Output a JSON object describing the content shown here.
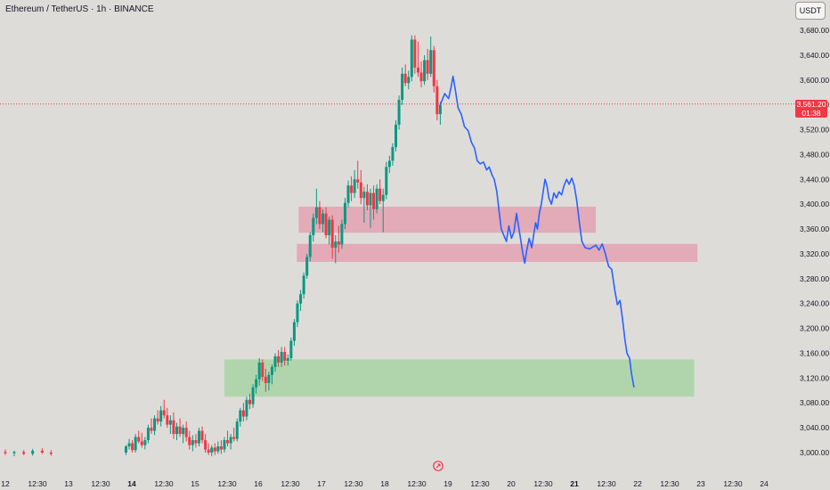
{
  "header": {
    "symbol_title": "Ethereum / TetherUS · 1h · BINANCE",
    "currency_button": "USDT"
  },
  "price_flag": {
    "price": "3,561.20",
    "countdown": "01:38"
  },
  "colors": {
    "background": "#dedcd9",
    "bull_candle": "#089981",
    "bear_candle": "#f23645",
    "projection_line": "#2962ff",
    "supply_zone": "#e4a1b2",
    "demand_zone": "#a8d3a4",
    "current_price_line": "#f23645"
  },
  "chart_data": {
    "type": "candlestick",
    "y_axis": {
      "ticks": [
        "3,680.00",
        "3,640.00",
        "3,600.00",
        "3,560.00",
        "3,520.00",
        "3,480.00",
        "3,440.00",
        "3,400.00",
        "3,360.00",
        "3,320.00",
        "3,280.00",
        "3,240.00",
        "3,200.00",
        "3,160.00",
        "3,120.00",
        "3,080.00",
        "3,040.00",
        "3,000.00"
      ],
      "ylim": [
        2980,
        3700
      ]
    },
    "x_axis": {
      "ticks": [
        {
          "label": "12",
          "bold": false
        },
        {
          "label": "12:30",
          "bold": false
        },
        {
          "label": "13",
          "bold": false
        },
        {
          "label": "12:30",
          "bold": false
        },
        {
          "label": "14",
          "bold": true
        },
        {
          "label": "12:30",
          "bold": false
        },
        {
          "label": "15",
          "bold": false
        },
        {
          "label": "12:30",
          "bold": false
        },
        {
          "label": "16",
          "bold": false
        },
        {
          "label": "12:30",
          "bold": false
        },
        {
          "label": "17",
          "bold": false
        },
        {
          "label": "12:30",
          "bold": false
        },
        {
          "label": "18",
          "bold": false
        },
        {
          "label": "12:30",
          "bold": false
        },
        {
          "label": "19",
          "bold": false
        },
        {
          "label": "12:30",
          "bold": false
        },
        {
          "label": "20",
          "bold": false
        },
        {
          "label": "12:30",
          "bold": false
        },
        {
          "label": "21",
          "bold": true
        },
        {
          "label": "12:30",
          "bold": false
        },
        {
          "label": "22",
          "bold": false
        },
        {
          "label": "12:30",
          "bold": false
        },
        {
          "label": "23",
          "bold": false
        },
        {
          "label": "12:30",
          "bold": false
        },
        {
          "label": "24",
          "bold": false
        }
      ]
    },
    "current_price": 3561.2,
    "zones": [
      {
        "kind": "supply",
        "x_from": 16.62,
        "x_to": 21.3,
        "y_low": 3354,
        "y_high": 3396
      },
      {
        "kind": "supply",
        "x_from": 16.59,
        "x_to": 22.9,
        "y_low": 3307,
        "y_high": 3336
      },
      {
        "kind": "demand",
        "x_from": 15.45,
        "x_to": 22.85,
        "y_low": 3090,
        "y_high": 3150
      }
    ],
    "candles": [
      {
        "t": 12.0,
        "o": 3001,
        "h": 3005,
        "l": 2996,
        "c": 2999
      },
      {
        "t": 12.14,
        "o": 2999,
        "h": 3003,
        "l": 2994,
        "c": 3001
      },
      {
        "t": 12.29,
        "o": 3001,
        "h": 3004,
        "l": 2996,
        "c": 2998
      },
      {
        "t": 12.43,
        "o": 2998,
        "h": 3006,
        "l": 2995,
        "c": 3003
      },
      {
        "t": 12.58,
        "o": 3003,
        "h": 3007,
        "l": 2998,
        "c": 3000
      },
      {
        "t": 12.72,
        "o": 3000,
        "h": 3004,
        "l": 2995,
        "c": 2998
      },
      {
        "t": 13.9,
        "o": 3000,
        "h": 3012,
        "l": 2996,
        "c": 3010
      },
      {
        "t": 13.95,
        "o": 3010,
        "h": 3022,
        "l": 3005,
        "c": 3015
      },
      {
        "t": 14.0,
        "o": 3015,
        "h": 3020,
        "l": 3000,
        "c": 3004
      },
      {
        "t": 14.05,
        "o": 3004,
        "h": 3030,
        "l": 3000,
        "c": 3025
      },
      {
        "t": 14.1,
        "o": 3025,
        "h": 3035,
        "l": 3015,
        "c": 3018
      },
      {
        "t": 14.15,
        "o": 3018,
        "h": 3032,
        "l": 3008,
        "c": 3012
      },
      {
        "t": 14.2,
        "o": 3012,
        "h": 3025,
        "l": 3005,
        "c": 3020
      },
      {
        "t": 14.25,
        "o": 3020,
        "h": 3045,
        "l": 3015,
        "c": 3040
      },
      {
        "t": 14.3,
        "o": 3040,
        "h": 3055,
        "l": 3030,
        "c": 3035
      },
      {
        "t": 14.35,
        "o": 3035,
        "h": 3060,
        "l": 3028,
        "c": 3055
      },
      {
        "t": 14.4,
        "o": 3055,
        "h": 3068,
        "l": 3045,
        "c": 3050
      },
      {
        "t": 14.45,
        "o": 3050,
        "h": 3075,
        "l": 3042,
        "c": 3068
      },
      {
        "t": 14.5,
        "o": 3068,
        "h": 3085,
        "l": 3055,
        "c": 3060
      },
      {
        "t": 14.55,
        "o": 3060,
        "h": 3072,
        "l": 3040,
        "c": 3045
      },
      {
        "t": 14.6,
        "o": 3045,
        "h": 3060,
        "l": 3030,
        "c": 3052
      },
      {
        "t": 14.65,
        "o": 3052,
        "h": 3065,
        "l": 3022,
        "c": 3030
      },
      {
        "t": 14.7,
        "o": 3030,
        "h": 3048,
        "l": 3020,
        "c": 3042
      },
      {
        "t": 14.75,
        "o": 3042,
        "h": 3055,
        "l": 3025,
        "c": 3030
      },
      {
        "t": 14.8,
        "o": 3030,
        "h": 3045,
        "l": 3015,
        "c": 3040
      },
      {
        "t": 14.85,
        "o": 3040,
        "h": 3050,
        "l": 3018,
        "c": 3025
      },
      {
        "t": 14.9,
        "o": 3025,
        "h": 3035,
        "l": 3005,
        "c": 3012
      },
      {
        "t": 14.95,
        "o": 3012,
        "h": 3028,
        "l": 3002,
        "c": 3020
      },
      {
        "t": 15.0,
        "o": 3020,
        "h": 3030,
        "l": 3008,
        "c": 3015
      },
      {
        "t": 15.05,
        "o": 3015,
        "h": 3040,
        "l": 3010,
        "c": 3035
      },
      {
        "t": 15.1,
        "o": 3035,
        "h": 3042,
        "l": 3015,
        "c": 3020
      },
      {
        "t": 15.15,
        "o": 3020,
        "h": 3030,
        "l": 3000,
        "c": 3005
      },
      {
        "t": 15.2,
        "o": 3005,
        "h": 3015,
        "l": 2996,
        "c": 3000
      },
      {
        "t": 15.25,
        "o": 3000,
        "h": 3012,
        "l": 2994,
        "c": 3008
      },
      {
        "t": 15.3,
        "o": 3008,
        "h": 3015,
        "l": 2996,
        "c": 3002
      },
      {
        "t": 15.35,
        "o": 3002,
        "h": 3018,
        "l": 2998,
        "c": 3010
      },
      {
        "t": 15.4,
        "o": 3010,
        "h": 3020,
        "l": 2998,
        "c": 3005
      },
      {
        "t": 15.45,
        "o": 3005,
        "h": 3025,
        "l": 3000,
        "c": 3020
      },
      {
        "t": 15.5,
        "o": 3020,
        "h": 3035,
        "l": 3010,
        "c": 3015
      },
      {
        "t": 15.55,
        "o": 3015,
        "h": 3030,
        "l": 3005,
        "c": 3025
      },
      {
        "t": 15.6,
        "o": 3025,
        "h": 3040,
        "l": 3018,
        "c": 3022
      },
      {
        "t": 15.65,
        "o": 3022,
        "h": 3055,
        "l": 3018,
        "c": 3050
      },
      {
        "t": 15.7,
        "o": 3050,
        "h": 3072,
        "l": 3042,
        "c": 3068
      },
      {
        "t": 15.75,
        "o": 3068,
        "h": 3080,
        "l": 3050,
        "c": 3058
      },
      {
        "t": 15.8,
        "o": 3058,
        "h": 3090,
        "l": 3052,
        "c": 3085
      },
      {
        "t": 15.85,
        "o": 3085,
        "h": 3095,
        "l": 3070,
        "c": 3078
      },
      {
        "t": 15.9,
        "o": 3078,
        "h": 3110,
        "l": 3072,
        "c": 3105
      },
      {
        "t": 15.95,
        "o": 3105,
        "h": 3125,
        "l": 3095,
        "c": 3118
      },
      {
        "t": 16.0,
        "o": 3118,
        "h": 3152,
        "l": 3108,
        "c": 3145
      },
      {
        "t": 16.05,
        "o": 3145,
        "h": 3150,
        "l": 3115,
        "c": 3122
      },
      {
        "t": 16.1,
        "o": 3122,
        "h": 3135,
        "l": 3098,
        "c": 3112
      },
      {
        "t": 16.15,
        "o": 3112,
        "h": 3130,
        "l": 3100,
        "c": 3125
      },
      {
        "t": 16.2,
        "o": 3125,
        "h": 3142,
        "l": 3110,
        "c": 3138
      },
      {
        "t": 16.25,
        "o": 3138,
        "h": 3160,
        "l": 3130,
        "c": 3155
      },
      {
        "t": 16.3,
        "o": 3155,
        "h": 3165,
        "l": 3138,
        "c": 3145
      },
      {
        "t": 16.35,
        "o": 3145,
        "h": 3170,
        "l": 3138,
        "c": 3162
      },
      {
        "t": 16.4,
        "o": 3162,
        "h": 3170,
        "l": 3140,
        "c": 3148
      },
      {
        "t": 16.45,
        "o": 3148,
        "h": 3158,
        "l": 3140,
        "c": 3152
      },
      {
        "t": 16.5,
        "o": 3152,
        "h": 3185,
        "l": 3148,
        "c": 3180
      },
      {
        "t": 16.55,
        "o": 3180,
        "h": 3215,
        "l": 3172,
        "c": 3210
      },
      {
        "t": 16.6,
        "o": 3210,
        "h": 3245,
        "l": 3202,
        "c": 3240
      },
      {
        "t": 16.65,
        "o": 3240,
        "h": 3262,
        "l": 3228,
        "c": 3255
      },
      {
        "t": 16.7,
        "o": 3255,
        "h": 3290,
        "l": 3248,
        "c": 3285
      },
      {
        "t": 16.75,
        "o": 3285,
        "h": 3320,
        "l": 3280,
        "c": 3315
      },
      {
        "t": 16.8,
        "o": 3315,
        "h": 3355,
        "l": 3308,
        "c": 3350
      },
      {
        "t": 16.85,
        "o": 3350,
        "h": 3385,
        "l": 3340,
        "c": 3378
      },
      {
        "t": 16.9,
        "o": 3378,
        "h": 3425,
        "l": 3368,
        "c": 3395
      },
      {
        "t": 16.95,
        "o": 3395,
        "h": 3405,
        "l": 3360,
        "c": 3368
      },
      {
        "t": 17.0,
        "o": 3368,
        "h": 3392,
        "l": 3355,
        "c": 3385
      },
      {
        "t": 17.05,
        "o": 3385,
        "h": 3395,
        "l": 3345,
        "c": 3350
      },
      {
        "t": 17.1,
        "o": 3350,
        "h": 3380,
        "l": 3335,
        "c": 3375
      },
      {
        "t": 17.15,
        "o": 3375,
        "h": 3382,
        "l": 3312,
        "c": 3330
      },
      {
        "t": 17.2,
        "o": 3330,
        "h": 3350,
        "l": 3305,
        "c": 3340
      },
      {
        "t": 17.25,
        "o": 3340,
        "h": 3365,
        "l": 3322,
        "c": 3335
      },
      {
        "t": 17.3,
        "o": 3335,
        "h": 3375,
        "l": 3328,
        "c": 3368
      },
      {
        "t": 17.35,
        "o": 3368,
        "h": 3410,
        "l": 3360,
        "c": 3402
      },
      {
        "t": 17.4,
        "o": 3402,
        "h": 3438,
        "l": 3395,
        "c": 3430
      },
      {
        "t": 17.45,
        "o": 3430,
        "h": 3445,
        "l": 3405,
        "c": 3418
      },
      {
        "t": 17.5,
        "o": 3418,
        "h": 3455,
        "l": 3410,
        "c": 3440
      },
      {
        "t": 17.55,
        "o": 3440,
        "h": 3470,
        "l": 3425,
        "c": 3435
      },
      {
        "t": 17.6,
        "o": 3435,
        "h": 3455,
        "l": 3400,
        "c": 3410
      },
      {
        "t": 17.65,
        "o": 3410,
        "h": 3428,
        "l": 3370,
        "c": 3420
      },
      {
        "t": 17.7,
        "o": 3420,
        "h": 3432,
        "l": 3390,
        "c": 3398
      },
      {
        "t": 17.75,
        "o": 3398,
        "h": 3425,
        "l": 3362,
        "c": 3418
      },
      {
        "t": 17.8,
        "o": 3418,
        "h": 3430,
        "l": 3375,
        "c": 3392
      },
      {
        "t": 17.85,
        "o": 3392,
        "h": 3432,
        "l": 3385,
        "c": 3425
      },
      {
        "t": 17.9,
        "o": 3425,
        "h": 3440,
        "l": 3400,
        "c": 3405
      },
      {
        "t": 17.95,
        "o": 3405,
        "h": 3425,
        "l": 3355,
        "c": 3415
      },
      {
        "t": 18.0,
        "o": 3415,
        "h": 3468,
        "l": 3408,
        "c": 3460
      },
      {
        "t": 18.05,
        "o": 3460,
        "h": 3478,
        "l": 3450,
        "c": 3470
      },
      {
        "t": 18.1,
        "o": 3470,
        "h": 3498,
        "l": 3462,
        "c": 3492
      },
      {
        "t": 18.15,
        "o": 3492,
        "h": 3535,
        "l": 3485,
        "c": 3528
      },
      {
        "t": 18.2,
        "o": 3528,
        "h": 3575,
        "l": 3520,
        "c": 3568
      },
      {
        "t": 18.25,
        "o": 3568,
        "h": 3620,
        "l": 3560,
        "c": 3610
      },
      {
        "t": 18.3,
        "o": 3610,
        "h": 3625,
        "l": 3590,
        "c": 3595
      },
      {
        "t": 18.35,
        "o": 3595,
        "h": 3615,
        "l": 3585,
        "c": 3605
      },
      {
        "t": 18.4,
        "o": 3605,
        "h": 3672,
        "l": 3598,
        "c": 3665
      },
      {
        "t": 18.45,
        "o": 3665,
        "h": 3672,
        "l": 3610,
        "c": 3620
      },
      {
        "t": 18.5,
        "o": 3620,
        "h": 3662,
        "l": 3605,
        "c": 3612
      },
      {
        "t": 18.55,
        "o": 3612,
        "h": 3630,
        "l": 3588,
        "c": 3598
      },
      {
        "t": 18.6,
        "o": 3598,
        "h": 3640,
        "l": 3592,
        "c": 3632
      },
      {
        "t": 18.65,
        "o": 3632,
        "h": 3650,
        "l": 3600,
        "c": 3610
      },
      {
        "t": 18.7,
        "o": 3610,
        "h": 3670,
        "l": 3605,
        "c": 3648
      },
      {
        "t": 18.75,
        "o": 3648,
        "h": 3655,
        "l": 3580,
        "c": 3590
      },
      {
        "t": 18.8,
        "o": 3590,
        "h": 3600,
        "l": 3535,
        "c": 3545
      },
      {
        "t": 18.85,
        "o": 3545,
        "h": 3565,
        "l": 3528,
        "c": 3560
      }
    ],
    "projection": [
      [
        18.85,
        3560
      ],
      [
        18.92,
        3578
      ],
      [
        18.98,
        3570
      ],
      [
        19.02,
        3588
      ],
      [
        19.05,
        3606
      ],
      [
        19.09,
        3582
      ],
      [
        19.13,
        3555
      ],
      [
        19.18,
        3545
      ],
      [
        19.23,
        3525
      ],
      [
        19.29,
        3518
      ],
      [
        19.34,
        3500
      ],
      [
        19.39,
        3490
      ],
      [
        19.43,
        3470
      ],
      [
        19.48,
        3465
      ],
      [
        19.53,
        3468
      ],
      [
        19.58,
        3455
      ],
      [
        19.62,
        3460
      ],
      [
        19.66,
        3448
      ],
      [
        19.7,
        3440
      ],
      [
        19.74,
        3420
      ],
      [
        19.78,
        3385
      ],
      [
        19.81,
        3360
      ],
      [
        19.85,
        3350
      ],
      [
        19.89,
        3340
      ],
      [
        19.93,
        3365
      ],
      [
        19.97,
        3345
      ],
      [
        20.01,
        3355
      ],
      [
        20.05,
        3385
      ],
      [
        20.09,
        3360
      ],
      [
        20.12,
        3340
      ],
      [
        20.15,
        3320
      ],
      [
        20.18,
        3305
      ],
      [
        20.21,
        3325
      ],
      [
        20.25,
        3345
      ],
      [
        20.29,
        3330
      ],
      [
        20.32,
        3350
      ],
      [
        20.35,
        3370
      ],
      [
        20.38,
        3360
      ],
      [
        20.41,
        3385
      ],
      [
        20.44,
        3400
      ],
      [
        20.47,
        3420
      ],
      [
        20.5,
        3440
      ],
      [
        20.53,
        3430
      ],
      [
        20.56,
        3410
      ],
      [
        20.6,
        3400
      ],
      [
        20.64,
        3418
      ],
      [
        20.68,
        3410
      ],
      [
        20.72,
        3420
      ],
      [
        20.76,
        3415
      ],
      [
        20.8,
        3430
      ],
      [
        20.84,
        3440
      ],
      [
        20.88,
        3432
      ],
      [
        20.92,
        3442
      ],
      [
        20.96,
        3430
      ],
      [
        21.0,
        3405
      ],
      [
        21.04,
        3370
      ],
      [
        21.08,
        3340
      ],
      [
        21.13,
        3330
      ],
      [
        21.2,
        3328
      ],
      [
        21.3,
        3334
      ],
      [
        21.35,
        3326
      ],
      [
        21.4,
        3336
      ],
      [
        21.45,
        3320
      ],
      [
        21.5,
        3300
      ],
      [
        21.55,
        3295
      ],
      [
        21.6,
        3260
      ],
      [
        21.64,
        3238
      ],
      [
        21.68,
        3245
      ],
      [
        21.72,
        3215
      ],
      [
        21.76,
        3180
      ],
      [
        21.79,
        3160
      ],
      [
        21.83,
        3152
      ],
      [
        21.86,
        3128
      ],
      [
        21.9,
        3105
      ]
    ]
  }
}
